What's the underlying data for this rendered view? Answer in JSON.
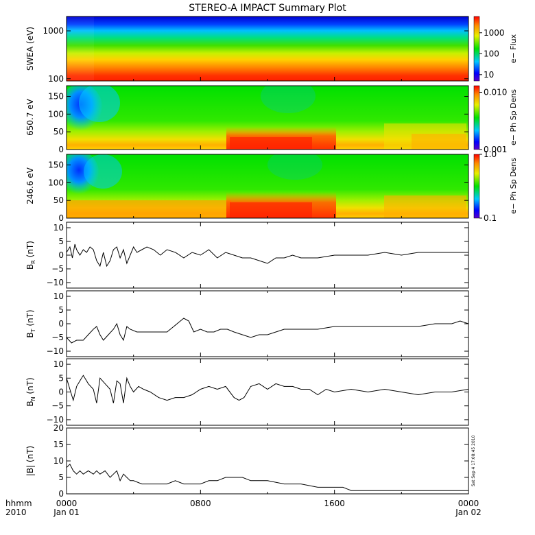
{
  "title": "STEREO-A IMPACT Summary Plot",
  "footer": {
    "hhmm_label": "hhmm",
    "year_label": "2010",
    "x_ticks": [
      "0000",
      "0800",
      "1600",
      "0000"
    ],
    "date_labels": [
      "Jan 01",
      "Jan 02"
    ],
    "timestamp": "Sat Sep  4 17:08:45 2010"
  },
  "chart_data": [
    {
      "type": "heatmap",
      "ylabel": "SWEA (eV)",
      "yscale": "log",
      "ylim": [
        90,
        2000
      ],
      "y_ticks": [
        "1000",
        "100"
      ],
      "x_range_hours": [
        0,
        24
      ],
      "colorbar": {
        "label": "e− Flux",
        "scale": "log",
        "range": [
          5,
          6000
        ],
        "ticks": [
          "1000",
          "100",
          "10"
        ]
      }
    },
    {
      "type": "heatmap",
      "ylabel": "650.7 eV",
      "ylim": [
        0,
        180
      ],
      "y_ticks": [
        "150",
        "100",
        "50",
        "0"
      ],
      "x_range_hours": [
        0,
        24
      ],
      "colorbar": {
        "label": "e− Ph Sp Dens",
        "scale": "log",
        "range": [
          0.001,
          0.013
        ],
        "ticks": [
          "0.010",
          "0.001"
        ]
      }
    },
    {
      "type": "heatmap",
      "ylabel": "246.6 eV",
      "ylim": [
        0,
        180
      ],
      "y_ticks": [
        "150",
        "100",
        "50",
        "0"
      ],
      "x_range_hours": [
        0,
        24
      ],
      "colorbar": {
        "label": "e− Ph Sp Dens",
        "scale": "log",
        "range": [
          0.1,
          1.0
        ],
        "ticks": [
          "1.0",
          "0.1"
        ]
      }
    },
    {
      "type": "line",
      "ylabel": "B_R (nT)",
      "ylim": [
        -12,
        12
      ],
      "y_ticks": [
        "10",
        "5",
        "0",
        "−5",
        "−10"
      ],
      "x": [
        0,
        0.2,
        0.35,
        0.5,
        0.6,
        0.8,
        1.0,
        1.2,
        1.4,
        1.6,
        1.8,
        2.0,
        2.2,
        2.4,
        2.6,
        2.8,
        3.0,
        3.2,
        3.4,
        3.6,
        3.8,
        4.0,
        4.2,
        4.5,
        4.8,
        5.2,
        5.6,
        6.0,
        6.5,
        7.0,
        7.5,
        8.0,
        8.5,
        9.0,
        9.5,
        10.0,
        10.5,
        11.0,
        11.5,
        12.0,
        12.5,
        13.0,
        13.5,
        14.0,
        15.0,
        16.0,
        17.0,
        18.0,
        19.0,
        20.0,
        21.0,
        22.0,
        23.0,
        24.0
      ],
      "y": [
        1,
        3,
        -1,
        4,
        2,
        0,
        2,
        1,
        3,
        2,
        -2,
        -4,
        1,
        -4,
        -2,
        2,
        3,
        -1,
        2,
        -3,
        0,
        3,
        1,
        2,
        3,
        2,
        0,
        2,
        1,
        -1,
        1,
        0,
        2,
        -1,
        1,
        0,
        -1,
        -1,
        -2,
        -3,
        -1,
        -1,
        0,
        -1,
        -1,
        0,
        0,
        0,
        1,
        0,
        1,
        1,
        1,
        1
      ]
    },
    {
      "type": "line",
      "ylabel": "B_T (nT)",
      "ylim": [
        -12,
        12
      ],
      "y_ticks": [
        "10",
        "5",
        "0",
        "−5",
        "−10"
      ],
      "x": [
        0,
        0.3,
        0.6,
        1.0,
        1.3,
        1.6,
        1.8,
        2.0,
        2.2,
        2.5,
        2.8,
        3.0,
        3.2,
        3.4,
        3.6,
        3.8,
        4.2,
        4.8,
        5.4,
        6.0,
        6.4,
        6.8,
        7.0,
        7.3,
        7.6,
        8.0,
        8.4,
        8.8,
        9.2,
        9.6,
        10.0,
        10.5,
        11.0,
        11.5,
        12.0,
        12.5,
        13.0,
        14.0,
        15.0,
        16.0,
        17.0,
        18.0,
        19.0,
        20.0,
        21.0,
        22.0,
        23.0,
        23.5,
        24.0
      ],
      "y": [
        -5,
        -7,
        -6,
        -6,
        -4,
        -2,
        -1,
        -4,
        -6,
        -4,
        -2,
        0,
        -4,
        -6,
        -1,
        -2,
        -3,
        -3,
        -3,
        -3,
        -1,
        1,
        2,
        1,
        -3,
        -2,
        -3,
        -3,
        -2,
        -2,
        -3,
        -4,
        -5,
        -4,
        -4,
        -3,
        -2,
        -2,
        -2,
        -1,
        -1,
        -1,
        -1,
        -1,
        -1,
        0,
        0,
        1,
        0
      ]
    },
    {
      "type": "line",
      "ylabel": "B_N (nT)",
      "ylim": [
        -12,
        12
      ],
      "y_ticks": [
        "10",
        "5",
        "0",
        "−5",
        "−10"
      ],
      "x": [
        0,
        0.2,
        0.4,
        0.6,
        0.8,
        1.0,
        1.3,
        1.6,
        1.8,
        2.0,
        2.3,
        2.6,
        2.8,
        3.0,
        3.2,
        3.4,
        3.6,
        3.8,
        4.0,
        4.3,
        4.6,
        5.0,
        5.5,
        6.0,
        6.5,
        7.0,
        7.5,
        8.0,
        8.5,
        9.0,
        9.5,
        10.0,
        10.3,
        10.6,
        11.0,
        11.5,
        12.0,
        12.5,
        13.0,
        13.5,
        14.0,
        14.5,
        15.0,
        15.5,
        16.0,
        17.0,
        18.0,
        19.0,
        20.0,
        21.0,
        22.0,
        23.0,
        24.0
      ],
      "y": [
        5,
        1,
        -3,
        2,
        4,
        6,
        3,
        1,
        -4,
        5,
        3,
        1,
        -4,
        4,
        3,
        -4,
        5,
        2,
        0,
        2,
        1,
        0,
        -2,
        -3,
        -2,
        -2,
        -1,
        1,
        2,
        1,
        2,
        -2,
        -3,
        -2,
        2,
        3,
        1,
        3,
        2,
        2,
        1,
        1,
        -1,
        1,
        0,
        1,
        0,
        1,
        0,
        -1,
        0,
        0,
        1
      ]
    },
    {
      "type": "line",
      "ylabel": "|B| (nT)",
      "ylim": [
        0,
        20
      ],
      "y_ticks": [
        "20",
        "15",
        "10",
        "5",
        "0"
      ],
      "x": [
        0,
        0.2,
        0.4,
        0.6,
        0.8,
        1.0,
        1.3,
        1.6,
        1.8,
        2.0,
        2.3,
        2.6,
        2.8,
        3.0,
        3.2,
        3.4,
        3.6,
        3.8,
        4.0,
        4.5,
        5.0,
        5.5,
        6.0,
        6.5,
        7.0,
        7.5,
        8.0,
        8.5,
        9.0,
        9.5,
        10.0,
        10.5,
        11.0,
        11.5,
        12.0,
        13.0,
        14.0,
        15.0,
        16.0,
        16.5,
        17.0,
        18.0,
        19.0,
        20.0,
        21.0,
        22.0,
        23.0,
        24.0
      ],
      "y": [
        8,
        9,
        7,
        6,
        7,
        6,
        7,
        6,
        7,
        6,
        7,
        5,
        6,
        7,
        4,
        6,
        5,
        4,
        4,
        3,
        3,
        3,
        3,
        4,
        3,
        3,
        3,
        4,
        4,
        5,
        5,
        5,
        4,
        4,
        4,
        3,
        3,
        2,
        2,
        2,
        1,
        1,
        1,
        1,
        1,
        1,
        1,
        1
      ]
    }
  ]
}
